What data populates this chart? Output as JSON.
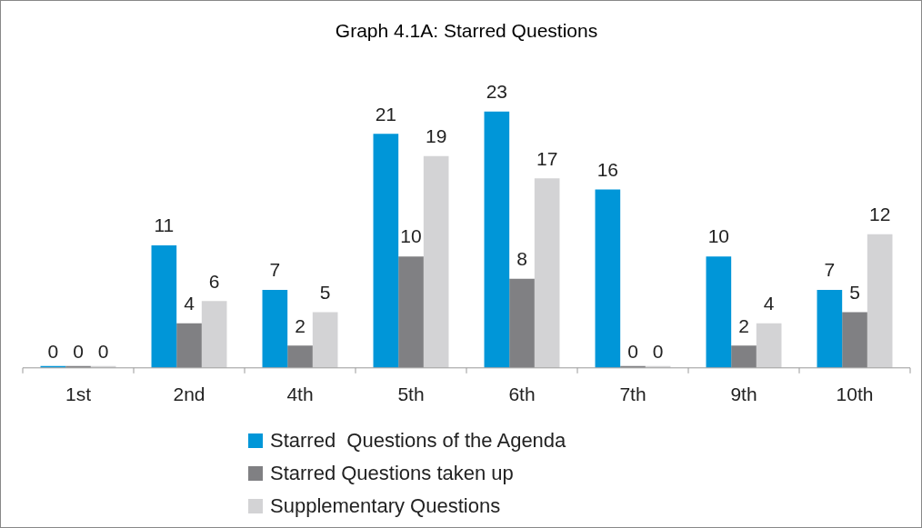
{
  "chart_data": {
    "type": "bar",
    "title": "Graph 4.1A: Starred Questions",
    "categories": [
      "1st",
      "2nd",
      "4th",
      "5th",
      "6th",
      "7th",
      "9th",
      "10th"
    ],
    "series": [
      {
        "name": "Starred  Questions of the Agenda",
        "color": "#0096d8",
        "values": [
          0,
          11,
          7,
          21,
          23,
          16,
          10,
          7
        ]
      },
      {
        "name": "Starred Questions taken up",
        "color": "#808083",
        "values": [
          0,
          4,
          2,
          10,
          8,
          0,
          2,
          5
        ]
      },
      {
        "name": "Supplementary Questions",
        "color": "#d3d3d5",
        "values": [
          0,
          6,
          5,
          19,
          17,
          0,
          4,
          12
        ]
      }
    ],
    "data_labels": true,
    "legend": "bottom",
    "grid": false
  }
}
